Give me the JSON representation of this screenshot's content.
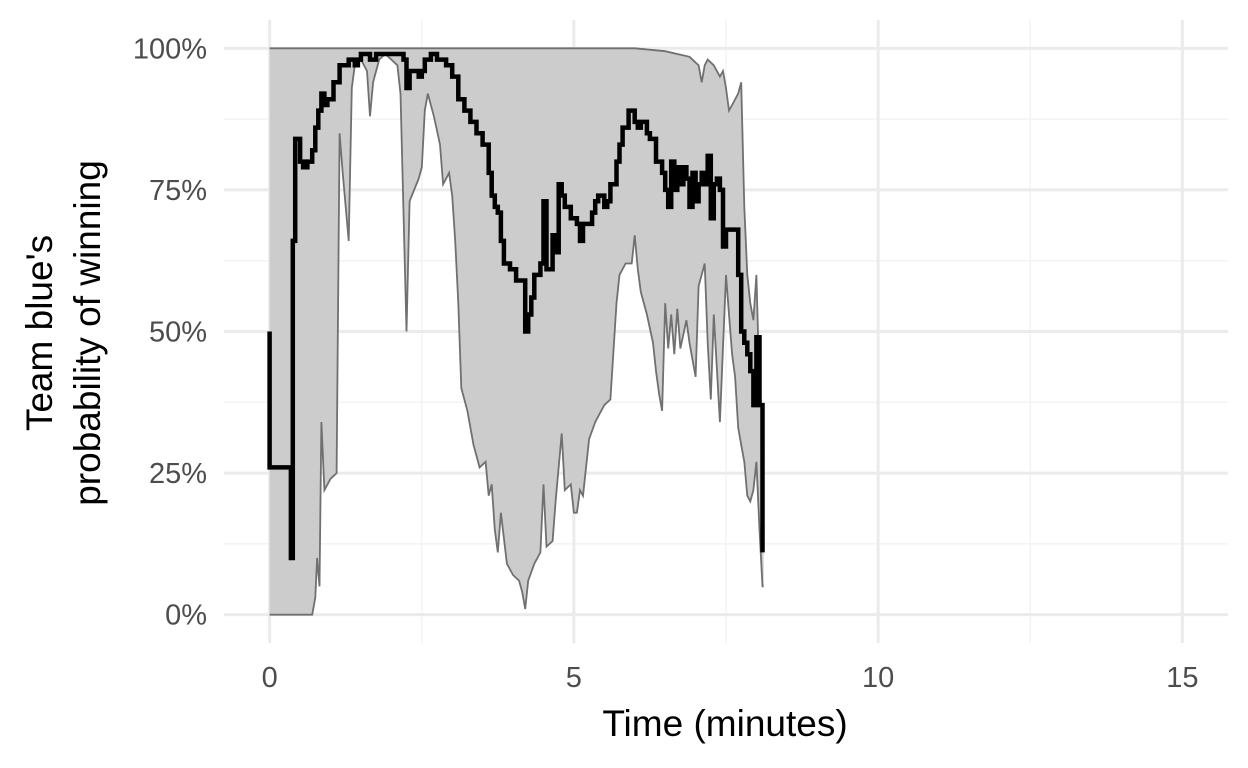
{
  "chart_data": {
    "type": "line",
    "title": "",
    "xlabel": "Time (minutes)",
    "ylabel_lines": [
      "Team blue's",
      "probability of winning"
    ],
    "xlim": [
      -0.75,
      15.75
    ],
    "ylim": [
      -0.05,
      1.05
    ],
    "x_ticks": [
      0,
      5,
      10,
      15
    ],
    "x_tick_labels": [
      "0",
      "5",
      "10",
      "15"
    ],
    "y_ticks": [
      0,
      0.25,
      0.5,
      0.75,
      1.0
    ],
    "y_tick_labels": [
      "0%",
      "25%",
      "50%",
      "75%",
      "100%"
    ],
    "grid": true,
    "legend": "none",
    "colors": {
      "line": "#000000",
      "band_fill": "#cccccc",
      "band_edge": "#707070",
      "grid_major": "#ebebeb",
      "grid_minor": "#f3f3f3",
      "text": "#4d4d4d"
    },
    "series": [
      {
        "values_step": [
          [
            0.0,
            0.5
          ],
          [
            0.0,
            0.26
          ],
          [
            0.35,
            0.26
          ],
          [
            0.35,
            0.1
          ],
          [
            0.38,
            0.66
          ],
          [
            0.42,
            0.77
          ],
          [
            0.42,
            0.84
          ],
          [
            0.5,
            0.8
          ],
          [
            0.55,
            0.79
          ],
          [
            0.62,
            0.8
          ],
          [
            0.7,
            0.82
          ],
          [
            0.75,
            0.86
          ],
          [
            0.8,
            0.89
          ],
          [
            0.85,
            0.92
          ],
          [
            0.9,
            0.9
          ],
          [
            0.95,
            0.91
          ],
          [
            1.0,
            0.91
          ],
          [
            1.05,
            0.94
          ],
          [
            1.15,
            0.97
          ],
          [
            1.3,
            0.98
          ],
          [
            1.4,
            0.97
          ],
          [
            1.45,
            0.98
          ],
          [
            1.5,
            0.99
          ],
          [
            1.6,
            0.99
          ],
          [
            1.65,
            0.98
          ],
          [
            1.75,
            0.99
          ],
          [
            1.85,
            0.99
          ],
          [
            2.0,
            0.99
          ],
          [
            2.2,
            0.98
          ],
          [
            2.25,
            0.93
          ],
          [
            2.3,
            0.96
          ],
          [
            2.4,
            0.96
          ],
          [
            2.45,
            0.95
          ],
          [
            2.5,
            0.96
          ],
          [
            2.55,
            0.98
          ],
          [
            2.65,
            0.99
          ],
          [
            2.75,
            0.98
          ],
          [
            2.9,
            0.97
          ],
          [
            3.0,
            0.95
          ],
          [
            3.1,
            0.91
          ],
          [
            3.2,
            0.89
          ],
          [
            3.3,
            0.87
          ],
          [
            3.4,
            0.85
          ],
          [
            3.5,
            0.83
          ],
          [
            3.6,
            0.78
          ],
          [
            3.65,
            0.74
          ],
          [
            3.7,
            0.72
          ],
          [
            3.75,
            0.71
          ],
          [
            3.8,
            0.66
          ],
          [
            3.85,
            0.62
          ],
          [
            3.95,
            0.61
          ],
          [
            4.05,
            0.59
          ],
          [
            4.15,
            0.59
          ],
          [
            4.2,
            0.5
          ],
          [
            4.25,
            0.53
          ],
          [
            4.3,
            0.56
          ],
          [
            4.35,
            0.6
          ],
          [
            4.45,
            0.62
          ],
          [
            4.5,
            0.73
          ],
          [
            4.55,
            0.61
          ],
          [
            4.6,
            0.61
          ],
          [
            4.65,
            0.67
          ],
          [
            4.7,
            0.64
          ],
          [
            4.75,
            0.76
          ],
          [
            4.8,
            0.74
          ],
          [
            4.85,
            0.72
          ],
          [
            4.95,
            0.7
          ],
          [
            5.05,
            0.69
          ],
          [
            5.1,
            0.66
          ],
          [
            5.15,
            0.69
          ],
          [
            5.2,
            0.69
          ],
          [
            5.3,
            0.71
          ],
          [
            5.35,
            0.73
          ],
          [
            5.4,
            0.74
          ],
          [
            5.5,
            0.72
          ],
          [
            5.55,
            0.73
          ],
          [
            5.6,
            0.76
          ],
          [
            5.7,
            0.8
          ],
          [
            5.75,
            0.83
          ],
          [
            5.8,
            0.86
          ],
          [
            5.9,
            0.89
          ],
          [
            6.0,
            0.87
          ],
          [
            6.05,
            0.86
          ],
          [
            6.1,
            0.87
          ],
          [
            6.2,
            0.85
          ],
          [
            6.25,
            0.84
          ],
          [
            6.35,
            0.8
          ],
          [
            6.45,
            0.78
          ],
          [
            6.5,
            0.75
          ],
          [
            6.55,
            0.72
          ],
          [
            6.6,
            0.8
          ],
          [
            6.65,
            0.75
          ],
          [
            6.7,
            0.79
          ],
          [
            6.75,
            0.76
          ],
          [
            6.8,
            0.79
          ],
          [
            6.85,
            0.77
          ],
          [
            6.9,
            0.72
          ],
          [
            6.95,
            0.78
          ],
          [
            7.0,
            0.73
          ],
          [
            7.05,
            0.76
          ],
          [
            7.1,
            0.78
          ],
          [
            7.15,
            0.76
          ],
          [
            7.2,
            0.81
          ],
          [
            7.25,
            0.7
          ],
          [
            7.3,
            0.76
          ],
          [
            7.35,
            0.77
          ],
          [
            7.4,
            0.75
          ],
          [
            7.45,
            0.65
          ],
          [
            7.5,
            0.68
          ],
          [
            7.55,
            0.68
          ],
          [
            7.6,
            0.68
          ],
          [
            7.65,
            0.68
          ],
          [
            7.7,
            0.6
          ],
          [
            7.75,
            0.5
          ],
          [
            7.8,
            0.48
          ],
          [
            7.85,
            0.46
          ],
          [
            7.9,
            0.43
          ],
          [
            7.95,
            0.37
          ],
          [
            8.0,
            0.49
          ],
          [
            8.05,
            0.37
          ],
          [
            8.1,
            0.3
          ],
          [
            8.1,
            0.11
          ]
        ]
      }
    ],
    "band_upper": [
      [
        0.0,
        1.0
      ],
      [
        0.8,
        1.0
      ],
      [
        1.0,
        1.0
      ],
      [
        1.5,
        1.0
      ],
      [
        2.0,
        1.0
      ],
      [
        3.0,
        1.0
      ],
      [
        4.0,
        1.0
      ],
      [
        5.0,
        1.0
      ],
      [
        6.0,
        1.0
      ],
      [
        6.5,
        0.995
      ],
      [
        6.7,
        0.99
      ],
      [
        6.9,
        0.985
      ],
      [
        7.05,
        0.97
      ],
      [
        7.1,
        0.94
      ],
      [
        7.15,
        0.97
      ],
      [
        7.2,
        0.98
      ],
      [
        7.3,
        0.97
      ],
      [
        7.4,
        0.95
      ],
      [
        7.45,
        0.96
      ],
      [
        7.5,
        0.93
      ],
      [
        7.55,
        0.89
      ],
      [
        7.6,
        0.9
      ],
      [
        7.7,
        0.92
      ],
      [
        7.75,
        0.94
      ],
      [
        7.8,
        0.72
      ],
      [
        7.85,
        0.6
      ],
      [
        7.9,
        0.55
      ],
      [
        7.95,
        0.52
      ],
      [
        8.0,
        0.6
      ],
      [
        8.05,
        0.4
      ],
      [
        8.1,
        0.35
      ],
      [
        8.12,
        0.28
      ]
    ],
    "band_lower": [
      [
        0.0,
        0.0
      ],
      [
        0.4,
        0.0
      ],
      [
        0.5,
        0.0
      ],
      [
        0.6,
        0.0
      ],
      [
        0.7,
        0.0
      ],
      [
        0.75,
        0.03
      ],
      [
        0.78,
        0.1
      ],
      [
        0.82,
        0.05
      ],
      [
        0.85,
        0.34
      ],
      [
        0.9,
        0.22
      ],
      [
        1.0,
        0.24
      ],
      [
        1.1,
        0.25
      ],
      [
        1.15,
        0.85
      ],
      [
        1.2,
        0.78
      ],
      [
        1.3,
        0.66
      ],
      [
        1.35,
        0.93
      ],
      [
        1.4,
        0.97
      ],
      [
        1.5,
        0.98
      ],
      [
        1.6,
        0.96
      ],
      [
        1.65,
        0.88
      ],
      [
        1.7,
        0.94
      ],
      [
        1.8,
        0.98
      ],
      [
        1.9,
        0.99
      ],
      [
        2.0,
        0.98
      ],
      [
        2.1,
        0.97
      ],
      [
        2.15,
        0.92
      ],
      [
        2.25,
        0.5
      ],
      [
        2.3,
        0.73
      ],
      [
        2.45,
        0.77
      ],
      [
        2.5,
        0.79
      ],
      [
        2.55,
        0.89
      ],
      [
        2.6,
        0.92
      ],
      [
        2.7,
        0.88
      ],
      [
        2.8,
        0.83
      ],
      [
        2.85,
        0.76
      ],
      [
        2.95,
        0.78
      ],
      [
        3.0,
        0.74
      ],
      [
        3.05,
        0.66
      ],
      [
        3.1,
        0.55
      ],
      [
        3.15,
        0.4
      ],
      [
        3.25,
        0.36
      ],
      [
        3.35,
        0.3
      ],
      [
        3.45,
        0.26
      ],
      [
        3.55,
        0.27
      ],
      [
        3.6,
        0.21
      ],
      [
        3.65,
        0.23
      ],
      [
        3.7,
        0.15
      ],
      [
        3.75,
        0.11
      ],
      [
        3.8,
        0.18
      ],
      [
        3.9,
        0.09
      ],
      [
        4.0,
        0.07
      ],
      [
        4.1,
        0.06
      ],
      [
        4.15,
        0.04
      ],
      [
        4.2,
        0.01
      ],
      [
        4.25,
        0.06
      ],
      [
        4.35,
        0.09
      ],
      [
        4.45,
        0.11
      ],
      [
        4.5,
        0.23
      ],
      [
        4.55,
        0.12
      ],
      [
        4.65,
        0.13
      ],
      [
        4.7,
        0.2
      ],
      [
        4.8,
        0.32
      ],
      [
        4.85,
        0.22
      ],
      [
        4.95,
        0.23
      ],
      [
        5.0,
        0.18
      ],
      [
        5.05,
        0.18
      ],
      [
        5.1,
        0.22
      ],
      [
        5.15,
        0.21
      ],
      [
        5.25,
        0.31
      ],
      [
        5.35,
        0.34
      ],
      [
        5.5,
        0.37
      ],
      [
        5.6,
        0.38
      ],
      [
        5.7,
        0.55
      ],
      [
        5.75,
        0.6
      ],
      [
        5.85,
        0.62
      ],
      [
        5.95,
        0.62
      ],
      [
        6.0,
        0.67
      ],
      [
        6.05,
        0.61
      ],
      [
        6.1,
        0.57
      ],
      [
        6.2,
        0.53
      ],
      [
        6.3,
        0.48
      ],
      [
        6.35,
        0.43
      ],
      [
        6.4,
        0.39
      ],
      [
        6.45,
        0.36
      ],
      [
        6.5,
        0.55
      ],
      [
        6.55,
        0.47
      ],
      [
        6.6,
        0.53
      ],
      [
        6.65,
        0.46
      ],
      [
        6.7,
        0.54
      ],
      [
        6.75,
        0.47
      ],
      [
        6.85,
        0.52
      ],
      [
        6.9,
        0.48
      ],
      [
        7.0,
        0.42
      ],
      [
        7.05,
        0.58
      ],
      [
        7.15,
        0.62
      ],
      [
        7.2,
        0.48
      ],
      [
        7.25,
        0.38
      ],
      [
        7.3,
        0.53
      ],
      [
        7.4,
        0.34
      ],
      [
        7.5,
        0.6
      ],
      [
        7.55,
        0.53
      ],
      [
        7.6,
        0.46
      ],
      [
        7.65,
        0.42
      ],
      [
        7.7,
        0.33
      ],
      [
        7.75,
        0.3
      ],
      [
        7.8,
        0.27
      ],
      [
        7.85,
        0.21
      ],
      [
        7.9,
        0.2
      ],
      [
        7.95,
        0.22
      ],
      [
        8.0,
        0.27
      ],
      [
        8.05,
        0.15
      ],
      [
        8.1,
        0.05
      ],
      [
        8.12,
        0.05
      ]
    ]
  }
}
